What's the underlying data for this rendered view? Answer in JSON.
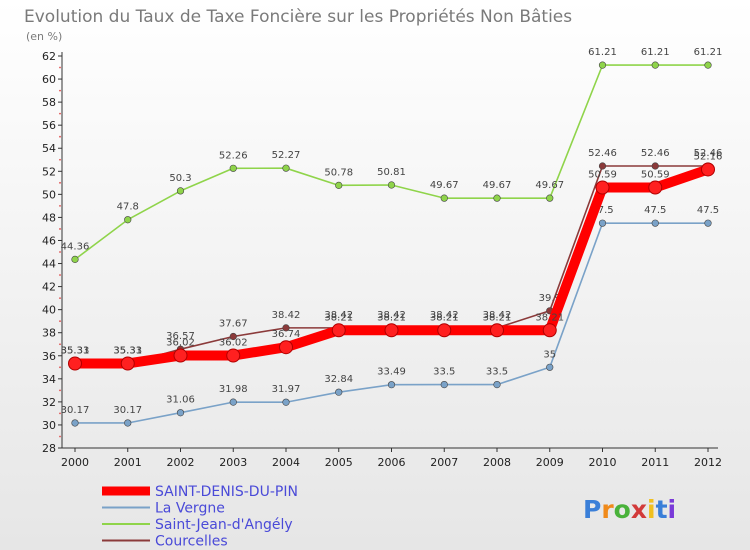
{
  "chart_data": {
    "type": "line",
    "title": "Evolution du Taux de Taxe Foncière sur les Propriétés Non Bâties",
    "subtitle": "(en %)",
    "x": [
      "2000",
      "2001",
      "2002",
      "2003",
      "2004",
      "2005",
      "2006",
      "2007",
      "2008",
      "2009",
      "2010",
      "2011",
      "2012"
    ],
    "ylim": [
      28,
      62
    ],
    "yticks": [
      28,
      30,
      32,
      34,
      36,
      38,
      40,
      42,
      44,
      46,
      48,
      50,
      52,
      54,
      56,
      58,
      60,
      62
    ],
    "grid": false,
    "legend_position": "bottom-left",
    "series": [
      {
        "name": "SAINT-DENIS-DU-PIN",
        "color": "#ff0000",
        "values": [
          35.33,
          35.33,
          36.02,
          36.02,
          36.74,
          38.21,
          38.21,
          38.21,
          38.21,
          38.21,
          50.59,
          50.59,
          52.16
        ],
        "labels": [
          "35.33",
          "35.33",
          "36.02",
          "36.02",
          "36.74",
          "38.21",
          "38.21",
          "38.21",
          "38.21",
          "38.21",
          "50.59",
          "50.59",
          "52.16"
        ]
      },
      {
        "name": "La Vergne",
        "color": "#7aa2c8",
        "values": [
          30.17,
          30.17,
          31.06,
          31.98,
          31.97,
          32.84,
          33.49,
          33.5,
          33.5,
          35,
          47.5,
          47.5,
          47.5
        ],
        "labels": [
          "30.17",
          "30.17",
          "31.06",
          "31.98",
          "31.97",
          "32.84",
          "33.49",
          "33.5",
          "33.5",
          "35",
          "47.5",
          "47.5",
          "47.5"
        ]
      },
      {
        "name": "Saint-Jean-d'Angély",
        "color": "#8fd44a",
        "values": [
          44.36,
          47.8,
          50.3,
          52.26,
          52.27,
          50.78,
          50.81,
          49.67,
          49.67,
          49.67,
          61.21,
          61.21,
          61.21
        ],
        "labels": [
          "44.36",
          "47.8",
          "50.3",
          "52.26",
          "52.27",
          "50.78",
          "50.81",
          "49.67",
          "49.67",
          "49.67",
          "61.21",
          "61.21",
          "61.21"
        ]
      },
      {
        "name": "Courcelles",
        "color": "#8b3a3a",
        "values": [
          35.31,
          35.31,
          36.57,
          37.67,
          38.42,
          38.42,
          38.42,
          38.42,
          38.42,
          39.9,
          52.46,
          52.46,
          52.46
        ],
        "labels": [
          "35.31",
          "35.31",
          "36.57",
          "37.67",
          "38.42",
          "38.42",
          "38.42",
          "38.42",
          "38.42",
          "39.9",
          "52.46",
          "52.46",
          "52.46"
        ]
      }
    ],
    "logo": "Proxiti"
  }
}
